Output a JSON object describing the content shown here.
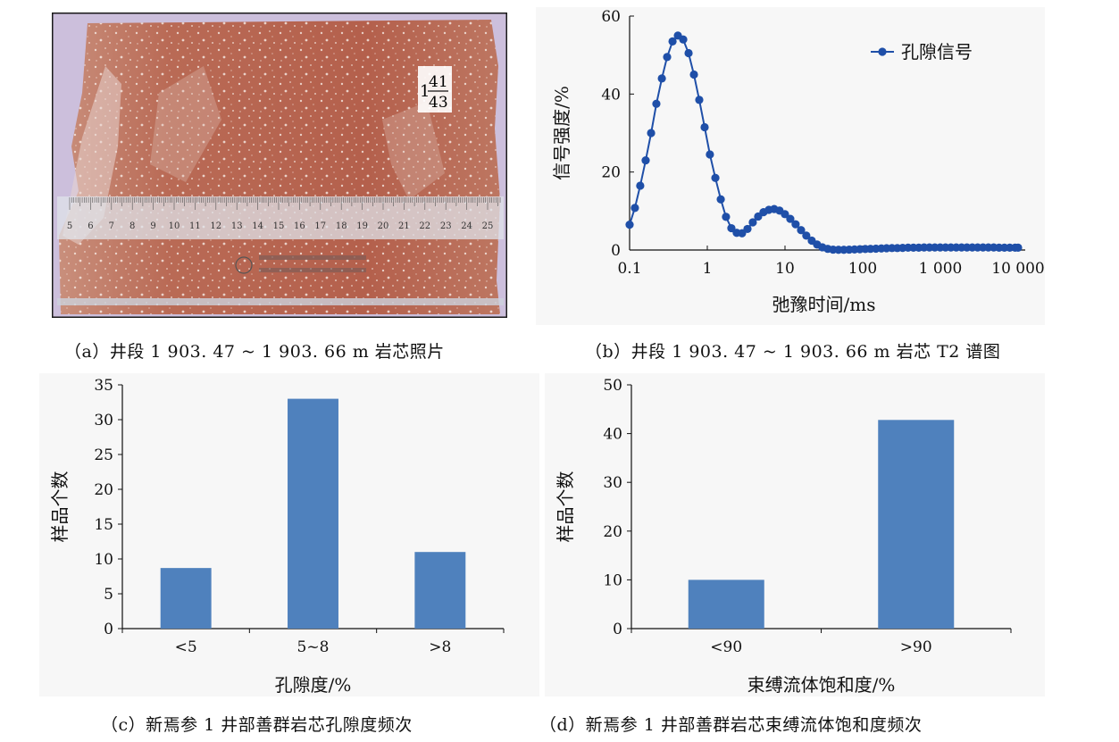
{
  "panels": {
    "a": {
      "caption": "（a）井段 1 903. 47 ~ 1 903. 66 m 岩芯照片",
      "depth_top": "41",
      "depth_bottom": "43",
      "depth_prefix": "1",
      "ruler_labels": [
        "5",
        "6",
        "7",
        "8",
        "9",
        "10",
        "11",
        "12",
        "13",
        "14",
        "15",
        "16",
        "17",
        "18",
        "19",
        "20",
        "21",
        "22",
        "23",
        "24",
        "25"
      ],
      "colors": {
        "border": "#1a1a1a",
        "rock": "#b86a55",
        "background": "#c9b8d8"
      }
    },
    "b": {
      "caption": "（b）井段 1 903. 47 ~ 1 903. 66 m 岩芯 T2 谱图"
    },
    "c": {
      "caption": "（c）新焉参 1 井部善群岩芯孔隙度频次"
    },
    "d": {
      "caption": "（d）新焉参 1 井部善群岩芯束缚流体饱和度频次"
    }
  },
  "chart_data": [
    {
      "id": "b",
      "type": "line",
      "xlabel": "弛豫时间/ms",
      "ylabel": "信号强度/%",
      "xscale": "log",
      "xlim": [
        0.1,
        10000
      ],
      "ylim": [
        0,
        60
      ],
      "xticks": [
        0.1,
        1,
        10,
        100,
        1000,
        10000
      ],
      "xtick_labels": [
        "0.1",
        "1",
        "10",
        "100",
        "1 000",
        "10 000"
      ],
      "yticks": [
        0,
        20,
        40,
        60
      ],
      "ytick_labels": [
        "0",
        "20",
        "40",
        "60"
      ],
      "legend_position": "top-right",
      "color": "#1f4fa8",
      "series": [
        {
          "name": "孔隙信号",
          "x": [
            0.1,
            0.117,
            0.137,
            0.161,
            0.189,
            0.221,
            0.26,
            0.304,
            0.357,
            0.418,
            0.49,
            0.574,
            0.673,
            0.788,
            0.924,
            1.08,
            1.27,
            1.49,
            1.74,
            2.04,
            2.39,
            2.8,
            3.29,
            3.85,
            4.51,
            5.29,
            6.2,
            7.26,
            8.51,
            9.98,
            11.7,
            13.7,
            16.1,
            18.8,
            22.1,
            25.9,
            30.3,
            35.5,
            41.6,
            48.8,
            57.2,
            67,
            78.5,
            92,
            108,
            126,
            148,
            174,
            203,
            238,
            279,
            327,
            384,
            450,
            527,
            617,
            723,
            848,
            994,
            1165,
            1365,
            1600,
            1874,
            2197,
            2575,
            3018,
            3536,
            4145,
            4857,
            5693,
            6671,
            7817,
            9163,
            10000
          ],
          "y": [
            6.5,
            10.8,
            16.5,
            23,
            30,
            37.5,
            44,
            49.5,
            53.5,
            55,
            54,
            50.5,
            45,
            38.5,
            31.5,
            24.5,
            18.5,
            13,
            8.5,
            5.6,
            4.4,
            4.3,
            5.4,
            7.1,
            8.6,
            9.7,
            10.3,
            10.5,
            10.1,
            9.2,
            8,
            6.6,
            5.1,
            3.7,
            2.4,
            1.4,
            0.7,
            0.3,
            0.1,
            0.05,
            0.05,
            0.1,
            0.15,
            0.2,
            0.25,
            0.3,
            0.35,
            0.4,
            0.45,
            0.5,
            0.5,
            0.55,
            0.6,
            0.6,
            0.6,
            0.65,
            0.65,
            0.65,
            0.65,
            0.65,
            0.65,
            0.65,
            0.65,
            0.65,
            0.65,
            0.65,
            0.65,
            0.65,
            0.65,
            0.6,
            0.6,
            0.6,
            0.6,
            0.6
          ]
        }
      ]
    },
    {
      "id": "c",
      "type": "bar",
      "xlabel": "孔隙度/%",
      "ylabel": "样品个数",
      "categories": [
        "<5",
        "5~8",
        ">8"
      ],
      "values": [
        8.7,
        33,
        11
      ],
      "ylim": [
        0,
        35
      ],
      "yticks": [
        0,
        5,
        10,
        15,
        20,
        25,
        30,
        35
      ],
      "color": "#4f81bd"
    },
    {
      "id": "d",
      "type": "bar",
      "xlabel": "束缚流体饱和度/%",
      "ylabel": "样品个数",
      "categories": [
        "<90",
        ">90"
      ],
      "values": [
        10,
        42.8
      ],
      "ylim": [
        0,
        50
      ],
      "yticks": [
        0,
        10,
        20,
        30,
        40,
        50
      ],
      "color": "#4f81bd"
    }
  ]
}
